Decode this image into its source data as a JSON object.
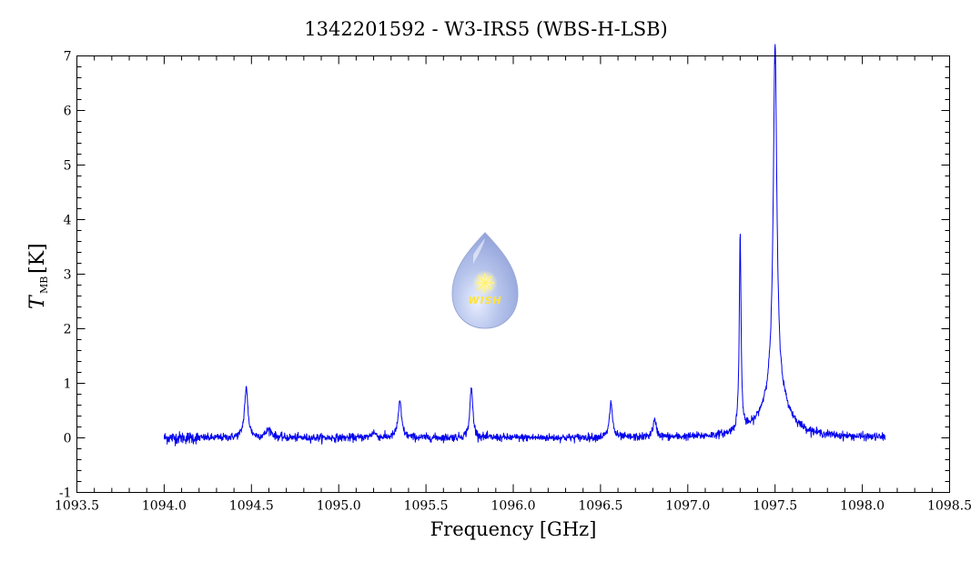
{
  "chart_data": {
    "type": "line",
    "title": "1342201592 - W3-IRS5 (WBS-H-LSB)",
    "xlabel": "Frequency [GHz]",
    "ylabel_main": "T",
    "ylabel_sub": "MB",
    "ylabel_unit": "[K]",
    "xlim": [
      1093.5,
      1098.5
    ],
    "ylim": [
      -1,
      7
    ],
    "x_ticks": [
      "1093.5",
      "1094.0",
      "1094.5",
      "1095.0",
      "1095.5",
      "1096.0",
      "1096.5",
      "1097.0",
      "1097.5",
      "1098.0",
      "1098.5"
    ],
    "y_ticks": [
      "-1",
      "0",
      "1",
      "2",
      "3",
      "4",
      "5",
      "6",
      "7"
    ],
    "grid": false,
    "series": [
      {
        "color": "#0000ee",
        "x_range": [
          1094.0,
          1098.13
        ],
        "baseline": 0.0,
        "noise_rms": 0.035,
        "lines": [
          {
            "center": 1094.47,
            "peak": 0.9,
            "width": 0.012
          },
          {
            "center": 1094.6,
            "peak": 0.15,
            "width": 0.02
          },
          {
            "center": 1095.2,
            "peak": 0.1,
            "width": 0.015
          },
          {
            "center": 1095.35,
            "peak": 0.65,
            "width": 0.012
          },
          {
            "center": 1095.76,
            "peak": 0.92,
            "width": 0.01
          },
          {
            "center": 1096.56,
            "peak": 0.65,
            "width": 0.01
          },
          {
            "center": 1096.81,
            "peak": 0.3,
            "width": 0.012
          },
          {
            "center": 1097.3,
            "peak": 3.6,
            "width": 0.006
          },
          {
            "center": 1097.5,
            "peak": 6.3,
            "width": 0.012
          },
          {
            "center": 1097.5,
            "peak": 0.9,
            "width": 0.08
          }
        ]
      }
    ]
  },
  "logo": {
    "text": "WISH",
    "icon": "water-drop-star-icon"
  }
}
